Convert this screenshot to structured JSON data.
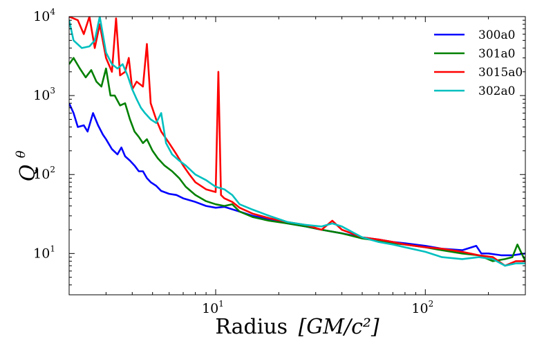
{
  "chart_data": {
    "type": "line",
    "title": "",
    "xlabel": "Radius",
    "xlabel_unit": "[GM/c²]",
    "ylabel": "Q",
    "ylabel_sup": "θ",
    "xscale": "log",
    "yscale": "log",
    "xlim": [
      2,
      300
    ],
    "ylim": [
      3,
      10000
    ],
    "x_ticks": [
      {
        "value": 10,
        "base": "10",
        "exp": "1"
      },
      {
        "value": 100,
        "base": "10",
        "exp": "2"
      }
    ],
    "y_ticks": [
      {
        "value": 10,
        "base": "10",
        "exp": "1"
      },
      {
        "value": 100,
        "base": "10",
        "exp": "2"
      },
      {
        "value": 1000,
        "base": "10",
        "exp": "3"
      },
      {
        "value": 10000,
        "base": "10",
        "exp": "4"
      }
    ],
    "legend_position": "top-right",
    "series": [
      {
        "name": "300a0",
        "color": "#0000ff",
        "points": [
          [
            2.0,
            800
          ],
          [
            2.1,
            600
          ],
          [
            2.2,
            400
          ],
          [
            2.35,
            420
          ],
          [
            2.45,
            350
          ],
          [
            2.6,
            600
          ],
          [
            2.75,
            420
          ],
          [
            2.9,
            320
          ],
          [
            3.0,
            280
          ],
          [
            3.2,
            210
          ],
          [
            3.4,
            180
          ],
          [
            3.55,
            220
          ],
          [
            3.7,
            170
          ],
          [
            3.9,
            150
          ],
          [
            4.1,
            130
          ],
          [
            4.3,
            110
          ],
          [
            4.5,
            110
          ],
          [
            4.7,
            90
          ],
          [
            4.9,
            80
          ],
          [
            5.2,
            72
          ],
          [
            5.5,
            62
          ],
          [
            6.0,
            57
          ],
          [
            6.5,
            55
          ],
          [
            7.0,
            50
          ],
          [
            8.0,
            45
          ],
          [
            9.0,
            40
          ],
          [
            10.0,
            38
          ],
          [
            11.0,
            39
          ],
          [
            13.0,
            34
          ],
          [
            15.0,
            30
          ],
          [
            18.0,
            27
          ],
          [
            22.0,
            24
          ],
          [
            27.0,
            22
          ],
          [
            32.0,
            20
          ],
          [
            40.0,
            18
          ],
          [
            50.0,
            16
          ],
          [
            60.0,
            15
          ],
          [
            70.0,
            14
          ],
          [
            80.0,
            13.5
          ],
          [
            100.0,
            12.5
          ],
          [
            120.0,
            11.5
          ],
          [
            150.0,
            11
          ],
          [
            175.0,
            12.5
          ],
          [
            185.0,
            10
          ],
          [
            200.0,
            10
          ],
          [
            230.0,
            9.5
          ],
          [
            260.0,
            9.5
          ],
          [
            300.0,
            10
          ]
        ]
      },
      {
        "name": "301a0",
        "color": "#008000",
        "points": [
          [
            2.0,
            2500
          ],
          [
            2.1,
            3000
          ],
          [
            2.25,
            2200
          ],
          [
            2.4,
            1700
          ],
          [
            2.55,
            2100
          ],
          [
            2.7,
            1500
          ],
          [
            2.85,
            1300
          ],
          [
            3.0,
            2200
          ],
          [
            3.15,
            1000
          ],
          [
            3.3,
            1000
          ],
          [
            3.5,
            750
          ],
          [
            3.7,
            800
          ],
          [
            3.9,
            500
          ],
          [
            4.1,
            350
          ],
          [
            4.3,
            300
          ],
          [
            4.5,
            250
          ],
          [
            4.7,
            280
          ],
          [
            5.0,
            200
          ],
          [
            5.3,
            160
          ],
          [
            5.7,
            130
          ],
          [
            6.2,
            110
          ],
          [
            6.7,
            90
          ],
          [
            7.2,
            70
          ],
          [
            8.0,
            55
          ],
          [
            9.0,
            46
          ],
          [
            10.0,
            42
          ],
          [
            11.0,
            40
          ],
          [
            12.0,
            42
          ],
          [
            13.0,
            34
          ],
          [
            15.0,
            29
          ],
          [
            18.0,
            26
          ],
          [
            22.0,
            24
          ],
          [
            27.0,
            22
          ],
          [
            32.0,
            20
          ],
          [
            40.0,
            18
          ],
          [
            50.0,
            15.5
          ],
          [
            60.0,
            14.5
          ],
          [
            70.0,
            13.5
          ],
          [
            80.0,
            13
          ],
          [
            100.0,
            12
          ],
          [
            120.0,
            11
          ],
          [
            150.0,
            10
          ],
          [
            180.0,
            9.5
          ],
          [
            210.0,
            8
          ],
          [
            240.0,
            8.5
          ],
          [
            260.0,
            9
          ],
          [
            275.0,
            13
          ],
          [
            300.0,
            8
          ]
        ]
      },
      {
        "name": "3015a0",
        "color": "#ff0000",
        "points": [
          [
            2.0,
            10000
          ],
          [
            2.2,
            9000
          ],
          [
            2.35,
            6000
          ],
          [
            2.5,
            10000
          ],
          [
            2.65,
            4000
          ],
          [
            2.8,
            8000
          ],
          [
            3.0,
            3000
          ],
          [
            3.2,
            2000
          ],
          [
            3.35,
            9500
          ],
          [
            3.5,
            1800
          ],
          [
            3.7,
            2000
          ],
          [
            3.85,
            3000
          ],
          [
            4.0,
            1200
          ],
          [
            4.2,
            1500
          ],
          [
            4.5,
            1300
          ],
          [
            4.7,
            4500
          ],
          [
            4.9,
            800
          ],
          [
            5.2,
            500
          ],
          [
            5.5,
            350
          ],
          [
            6.0,
            250
          ],
          [
            6.5,
            180
          ],
          [
            7.0,
            130
          ],
          [
            7.5,
            100
          ],
          [
            8.0,
            80
          ],
          [
            9.0,
            65
          ],
          [
            10.0,
            60
          ],
          [
            10.3,
            2000
          ],
          [
            10.6,
            55
          ],
          [
            11.0,
            50
          ],
          [
            12.0,
            45
          ],
          [
            13.0,
            38
          ],
          [
            15.0,
            32
          ],
          [
            18.0,
            28
          ],
          [
            22.0,
            25
          ],
          [
            27.0,
            23
          ],
          [
            32.0,
            20
          ],
          [
            36.0,
            26
          ],
          [
            40.0,
            20
          ],
          [
            50.0,
            16
          ],
          [
            60.0,
            15
          ],
          [
            70.0,
            14
          ],
          [
            80.0,
            13
          ],
          [
            100.0,
            12
          ],
          [
            120.0,
            11.5
          ],
          [
            150.0,
            10.5
          ],
          [
            180.0,
            9.5
          ],
          [
            210.0,
            9
          ],
          [
            240.0,
            7
          ],
          [
            270.0,
            8
          ],
          [
            300.0,
            8
          ]
        ]
      },
      {
        "name": "302a0",
        "color": "#00bfbf",
        "points": [
          [
            2.0,
            9000
          ],
          [
            2.1,
            5000
          ],
          [
            2.3,
            4000
          ],
          [
            2.5,
            4200
          ],
          [
            2.65,
            5000
          ],
          [
            2.8,
            10000
          ],
          [
            3.0,
            3500
          ],
          [
            3.2,
            2500
          ],
          [
            3.4,
            2200
          ],
          [
            3.6,
            2500
          ],
          [
            3.8,
            1800
          ],
          [
            4.0,
            1200
          ],
          [
            4.2,
            900
          ],
          [
            4.4,
            700
          ],
          [
            4.6,
            600
          ],
          [
            4.9,
            500
          ],
          [
            5.2,
            450
          ],
          [
            5.5,
            600
          ],
          [
            5.8,
            250
          ],
          [
            6.2,
            180
          ],
          [
            6.7,
            150
          ],
          [
            7.2,
            130
          ],
          [
            8.0,
            100
          ],
          [
            9.0,
            85
          ],
          [
            10.0,
            70
          ],
          [
            11.0,
            65
          ],
          [
            12.0,
            55
          ],
          [
            13.0,
            42
          ],
          [
            15.0,
            36
          ],
          [
            18.0,
            30
          ],
          [
            22.0,
            25
          ],
          [
            27.0,
            23
          ],
          [
            32.0,
            22
          ],
          [
            36.0,
            24
          ],
          [
            40.0,
            22
          ],
          [
            50.0,
            16
          ],
          [
            60.0,
            14
          ],
          [
            70.0,
            13
          ],
          [
            80.0,
            12
          ],
          [
            100.0,
            10.5
          ],
          [
            120.0,
            9
          ],
          [
            150.0,
            8.5
          ],
          [
            180.0,
            9
          ],
          [
            210.0,
            8.5
          ],
          [
            240.0,
            7
          ],
          [
            270.0,
            7.5
          ],
          [
            300.0,
            7.5
          ]
        ]
      }
    ]
  }
}
